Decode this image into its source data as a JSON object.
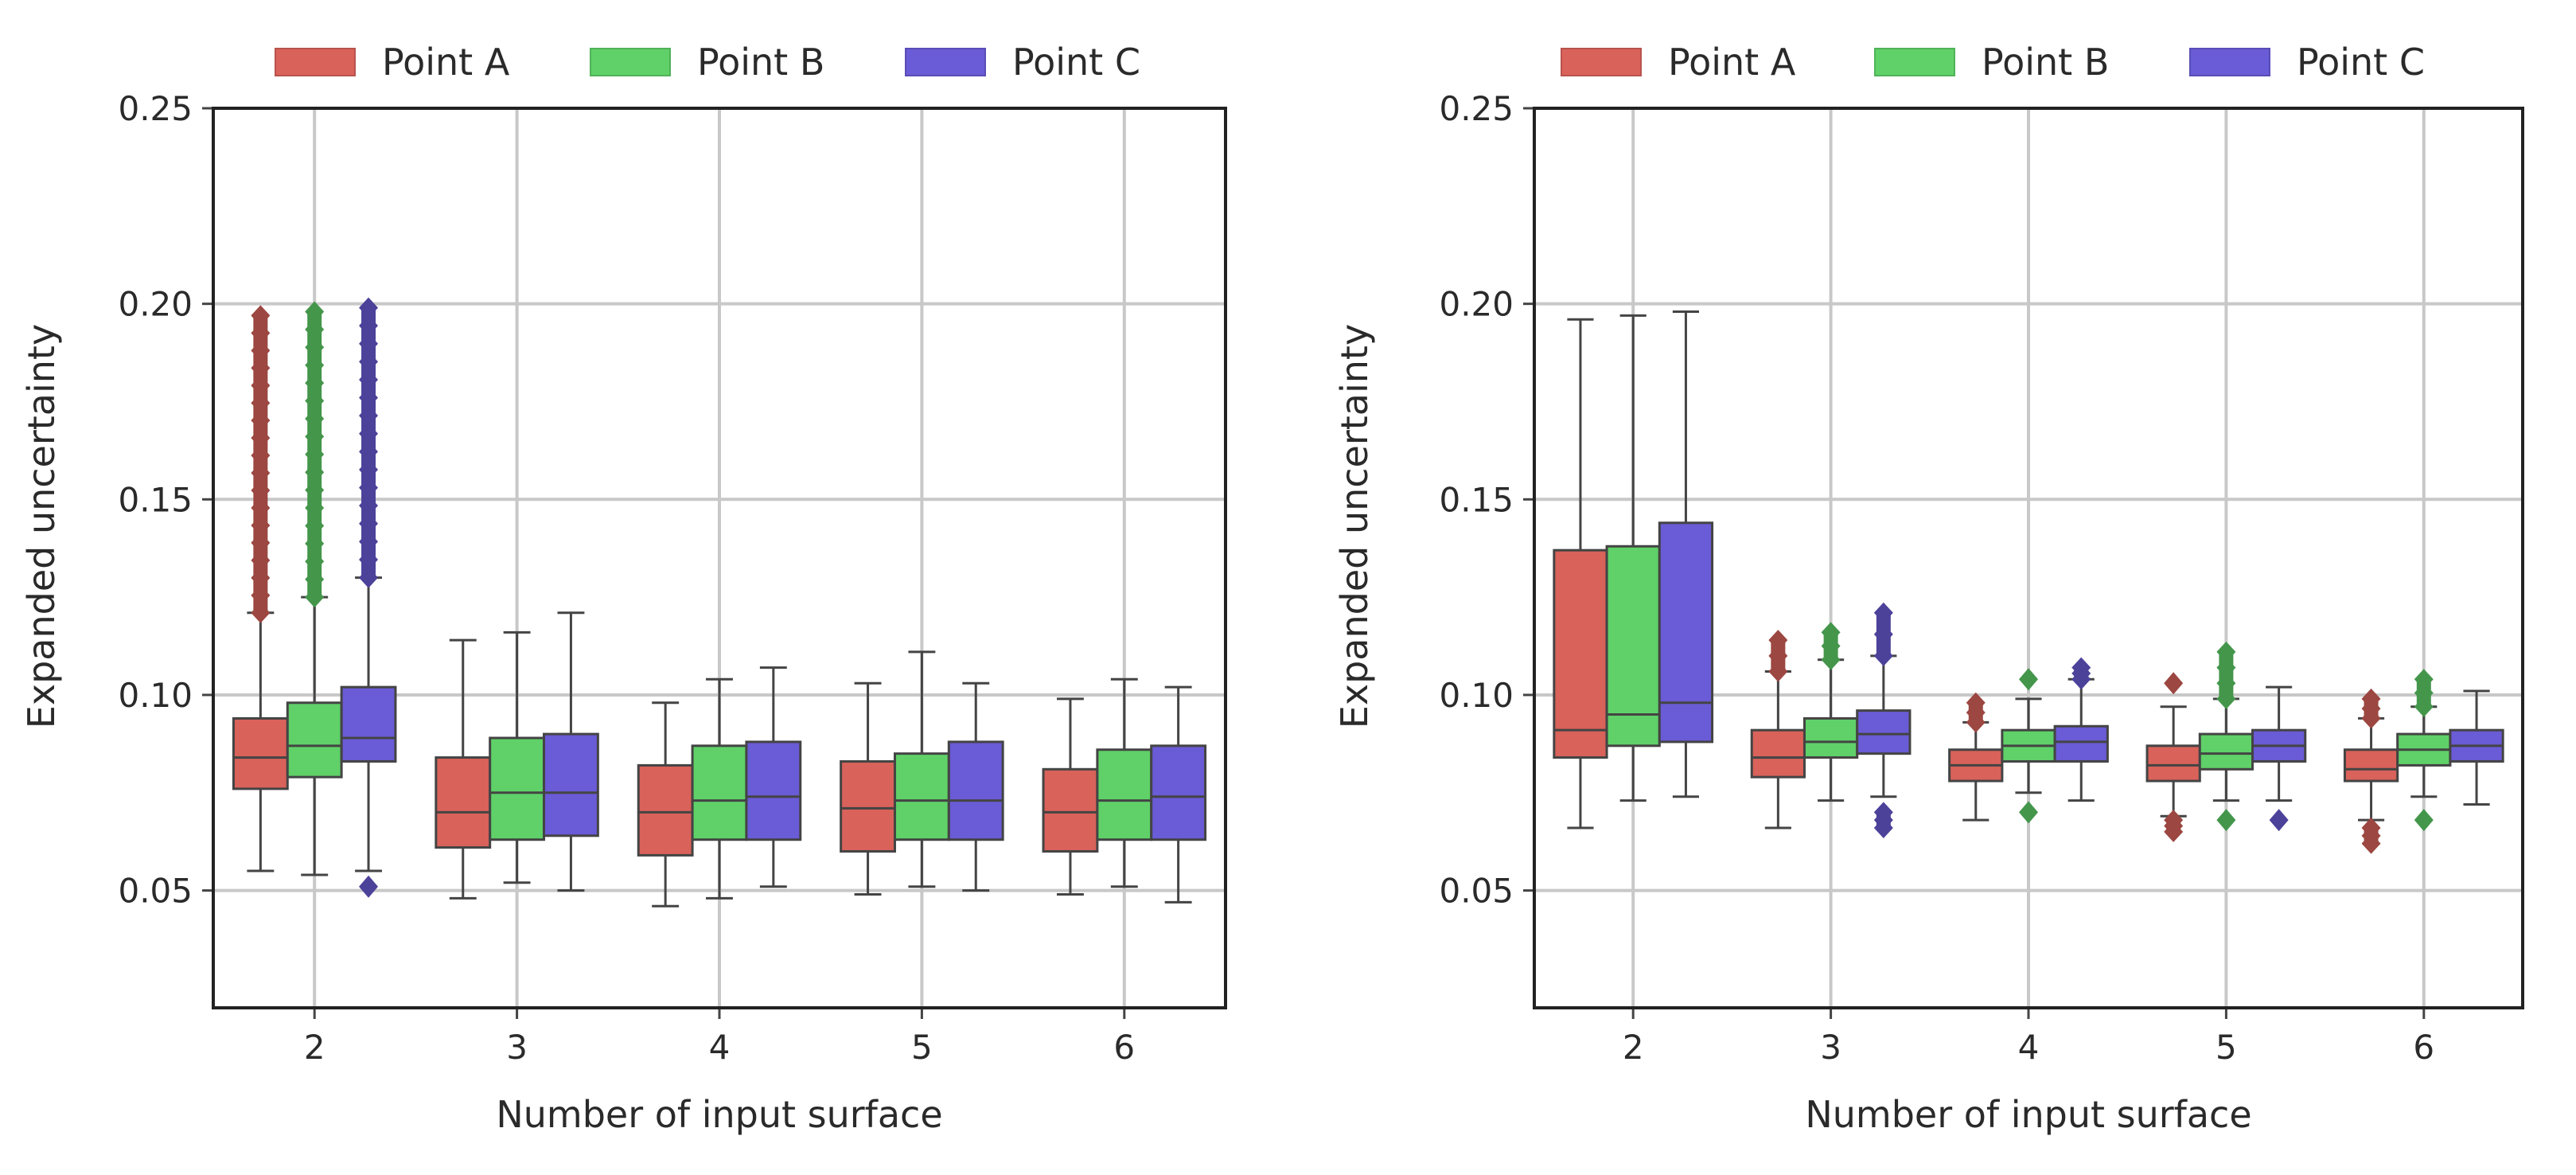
{
  "chart_data": [
    {
      "type": "box",
      "title": "",
      "xlabel": "Number of input surface",
      "ylabel": "Expanded uncertainty",
      "categories": [
        "2",
        "3",
        "4",
        "5",
        "6"
      ],
      "ylim": [
        0.02,
        0.25
      ],
      "yticks": [
        "0.05",
        "0.10",
        "0.15",
        "0.20",
        "0.25"
      ],
      "ytick_values": [
        0.05,
        0.1,
        0.15,
        0.2,
        0.25
      ],
      "grid": true,
      "legend": "top",
      "series": [
        {
          "name": "Point A",
          "color": "#d9625a",
          "boxes": [
            {
              "q1": 0.076,
              "median": 0.084,
              "q3": 0.094,
              "wlo": 0.055,
              "whi": 0.121,
              "fliers_hi": [
                0.121,
                0.197
              ]
            },
            {
              "q1": 0.061,
              "median": 0.07,
              "q3": 0.084,
              "wlo": 0.048,
              "whi": 0.114
            },
            {
              "q1": 0.059,
              "median": 0.07,
              "q3": 0.082,
              "wlo": 0.046,
              "whi": 0.098
            },
            {
              "q1": 0.06,
              "median": 0.071,
              "q3": 0.083,
              "wlo": 0.049,
              "whi": 0.103
            },
            {
              "q1": 0.06,
              "median": 0.07,
              "q3": 0.081,
              "wlo": 0.049,
              "whi": 0.099
            }
          ]
        },
        {
          "name": "Point B",
          "color": "#5fd168",
          "boxes": [
            {
              "q1": 0.079,
              "median": 0.087,
              "q3": 0.098,
              "wlo": 0.054,
              "whi": 0.125,
              "fliers_hi": [
                0.125,
                0.198
              ]
            },
            {
              "q1": 0.063,
              "median": 0.075,
              "q3": 0.089,
              "wlo": 0.052,
              "whi": 0.116
            },
            {
              "q1": 0.063,
              "median": 0.073,
              "q3": 0.087,
              "wlo": 0.048,
              "whi": 0.104
            },
            {
              "q1": 0.063,
              "median": 0.073,
              "q3": 0.085,
              "wlo": 0.051,
              "whi": 0.111
            },
            {
              "q1": 0.063,
              "median": 0.073,
              "q3": 0.086,
              "wlo": 0.051,
              "whi": 0.104
            }
          ]
        },
        {
          "name": "Point C",
          "color": "#6a5bd6",
          "boxes": [
            {
              "q1": 0.083,
              "median": 0.089,
              "q3": 0.102,
              "wlo": 0.055,
              "whi": 0.13,
              "fliers_hi": [
                0.13,
                0.199
              ],
              "fliers_lo": [
                0.051
              ]
            },
            {
              "q1": 0.064,
              "median": 0.075,
              "q3": 0.09,
              "wlo": 0.05,
              "whi": 0.121
            },
            {
              "q1": 0.063,
              "median": 0.074,
              "q3": 0.088,
              "wlo": 0.051,
              "whi": 0.107
            },
            {
              "q1": 0.063,
              "median": 0.073,
              "q3": 0.088,
              "wlo": 0.05,
              "whi": 0.103
            },
            {
              "q1": 0.063,
              "median": 0.074,
              "q3": 0.087,
              "wlo": 0.047,
              "whi": 0.102
            }
          ]
        }
      ]
    },
    {
      "type": "box",
      "title": "",
      "xlabel": "Number of input surface",
      "ylabel": "Expanded uncertainty",
      "categories": [
        "2",
        "3",
        "4",
        "5",
        "6"
      ],
      "ylim": [
        0.02,
        0.25
      ],
      "yticks": [
        "0.05",
        "0.10",
        "0.15",
        "0.20",
        "0.25"
      ],
      "ytick_values": [
        0.05,
        0.1,
        0.15,
        0.2,
        0.25
      ],
      "grid": true,
      "legend": "top",
      "series": [
        {
          "name": "Point A",
          "color": "#d9625a",
          "boxes": [
            {
              "q1": 0.084,
              "median": 0.091,
              "q3": 0.137,
              "wlo": 0.066,
              "whi": 0.196
            },
            {
              "q1": 0.079,
              "median": 0.084,
              "q3": 0.091,
              "wlo": 0.066,
              "whi": 0.106,
              "fliers_hi": [
                0.106,
                0.114
              ]
            },
            {
              "q1": 0.078,
              "median": 0.082,
              "q3": 0.086,
              "wlo": 0.068,
              "whi": 0.093,
              "fliers_hi": [
                0.093,
                0.098
              ]
            },
            {
              "q1": 0.078,
              "median": 0.082,
              "q3": 0.087,
              "wlo": 0.069,
              "whi": 0.097,
              "fliers_hi": [
                0.103
              ],
              "fliers_lo": [
                0.065,
                0.068
              ]
            },
            {
              "q1": 0.078,
              "median": 0.081,
              "q3": 0.086,
              "wlo": 0.068,
              "whi": 0.094,
              "fliers_hi": [
                0.094,
                0.099
              ],
              "fliers_lo": [
                0.062,
                0.066
              ]
            }
          ]
        },
        {
          "name": "Point B",
          "color": "#5fd168",
          "boxes": [
            {
              "q1": 0.087,
              "median": 0.095,
              "q3": 0.138,
              "wlo": 0.073,
              "whi": 0.197
            },
            {
              "q1": 0.084,
              "median": 0.088,
              "q3": 0.094,
              "wlo": 0.073,
              "whi": 0.109,
              "fliers_hi": [
                0.109,
                0.116
              ]
            },
            {
              "q1": 0.083,
              "median": 0.087,
              "q3": 0.091,
              "wlo": 0.075,
              "whi": 0.099,
              "fliers_hi": [
                0.104
              ],
              "fliers_lo": [
                0.07
              ]
            },
            {
              "q1": 0.081,
              "median": 0.085,
              "q3": 0.09,
              "wlo": 0.073,
              "whi": 0.099,
              "fliers_hi": [
                0.099,
                0.111
              ],
              "fliers_lo": [
                0.068
              ]
            },
            {
              "q1": 0.082,
              "median": 0.086,
              "q3": 0.09,
              "wlo": 0.074,
              "whi": 0.097,
              "fliers_hi": [
                0.097,
                0.104
              ],
              "fliers_lo": [
                0.068
              ]
            }
          ]
        },
        {
          "name": "Point C",
          "color": "#6a5bd6",
          "boxes": [
            {
              "q1": 0.088,
              "median": 0.098,
              "q3": 0.144,
              "wlo": 0.074,
              "whi": 0.198
            },
            {
              "q1": 0.085,
              "median": 0.09,
              "q3": 0.096,
              "wlo": 0.074,
              "whi": 0.11,
              "fliers_hi": [
                0.11,
                0.121
              ],
              "fliers_lo": [
                0.066,
                0.07
              ]
            },
            {
              "q1": 0.083,
              "median": 0.088,
              "q3": 0.092,
              "wlo": 0.073,
              "whi": 0.104,
              "fliers_hi": [
                0.104,
                0.107
              ]
            },
            {
              "q1": 0.083,
              "median": 0.087,
              "q3": 0.091,
              "wlo": 0.073,
              "whi": 0.102,
              "fliers_lo": [
                0.068
              ]
            },
            {
              "q1": 0.083,
              "median": 0.087,
              "q3": 0.091,
              "wlo": 0.072,
              "whi": 0.101
            }
          ]
        }
      ]
    }
  ]
}
